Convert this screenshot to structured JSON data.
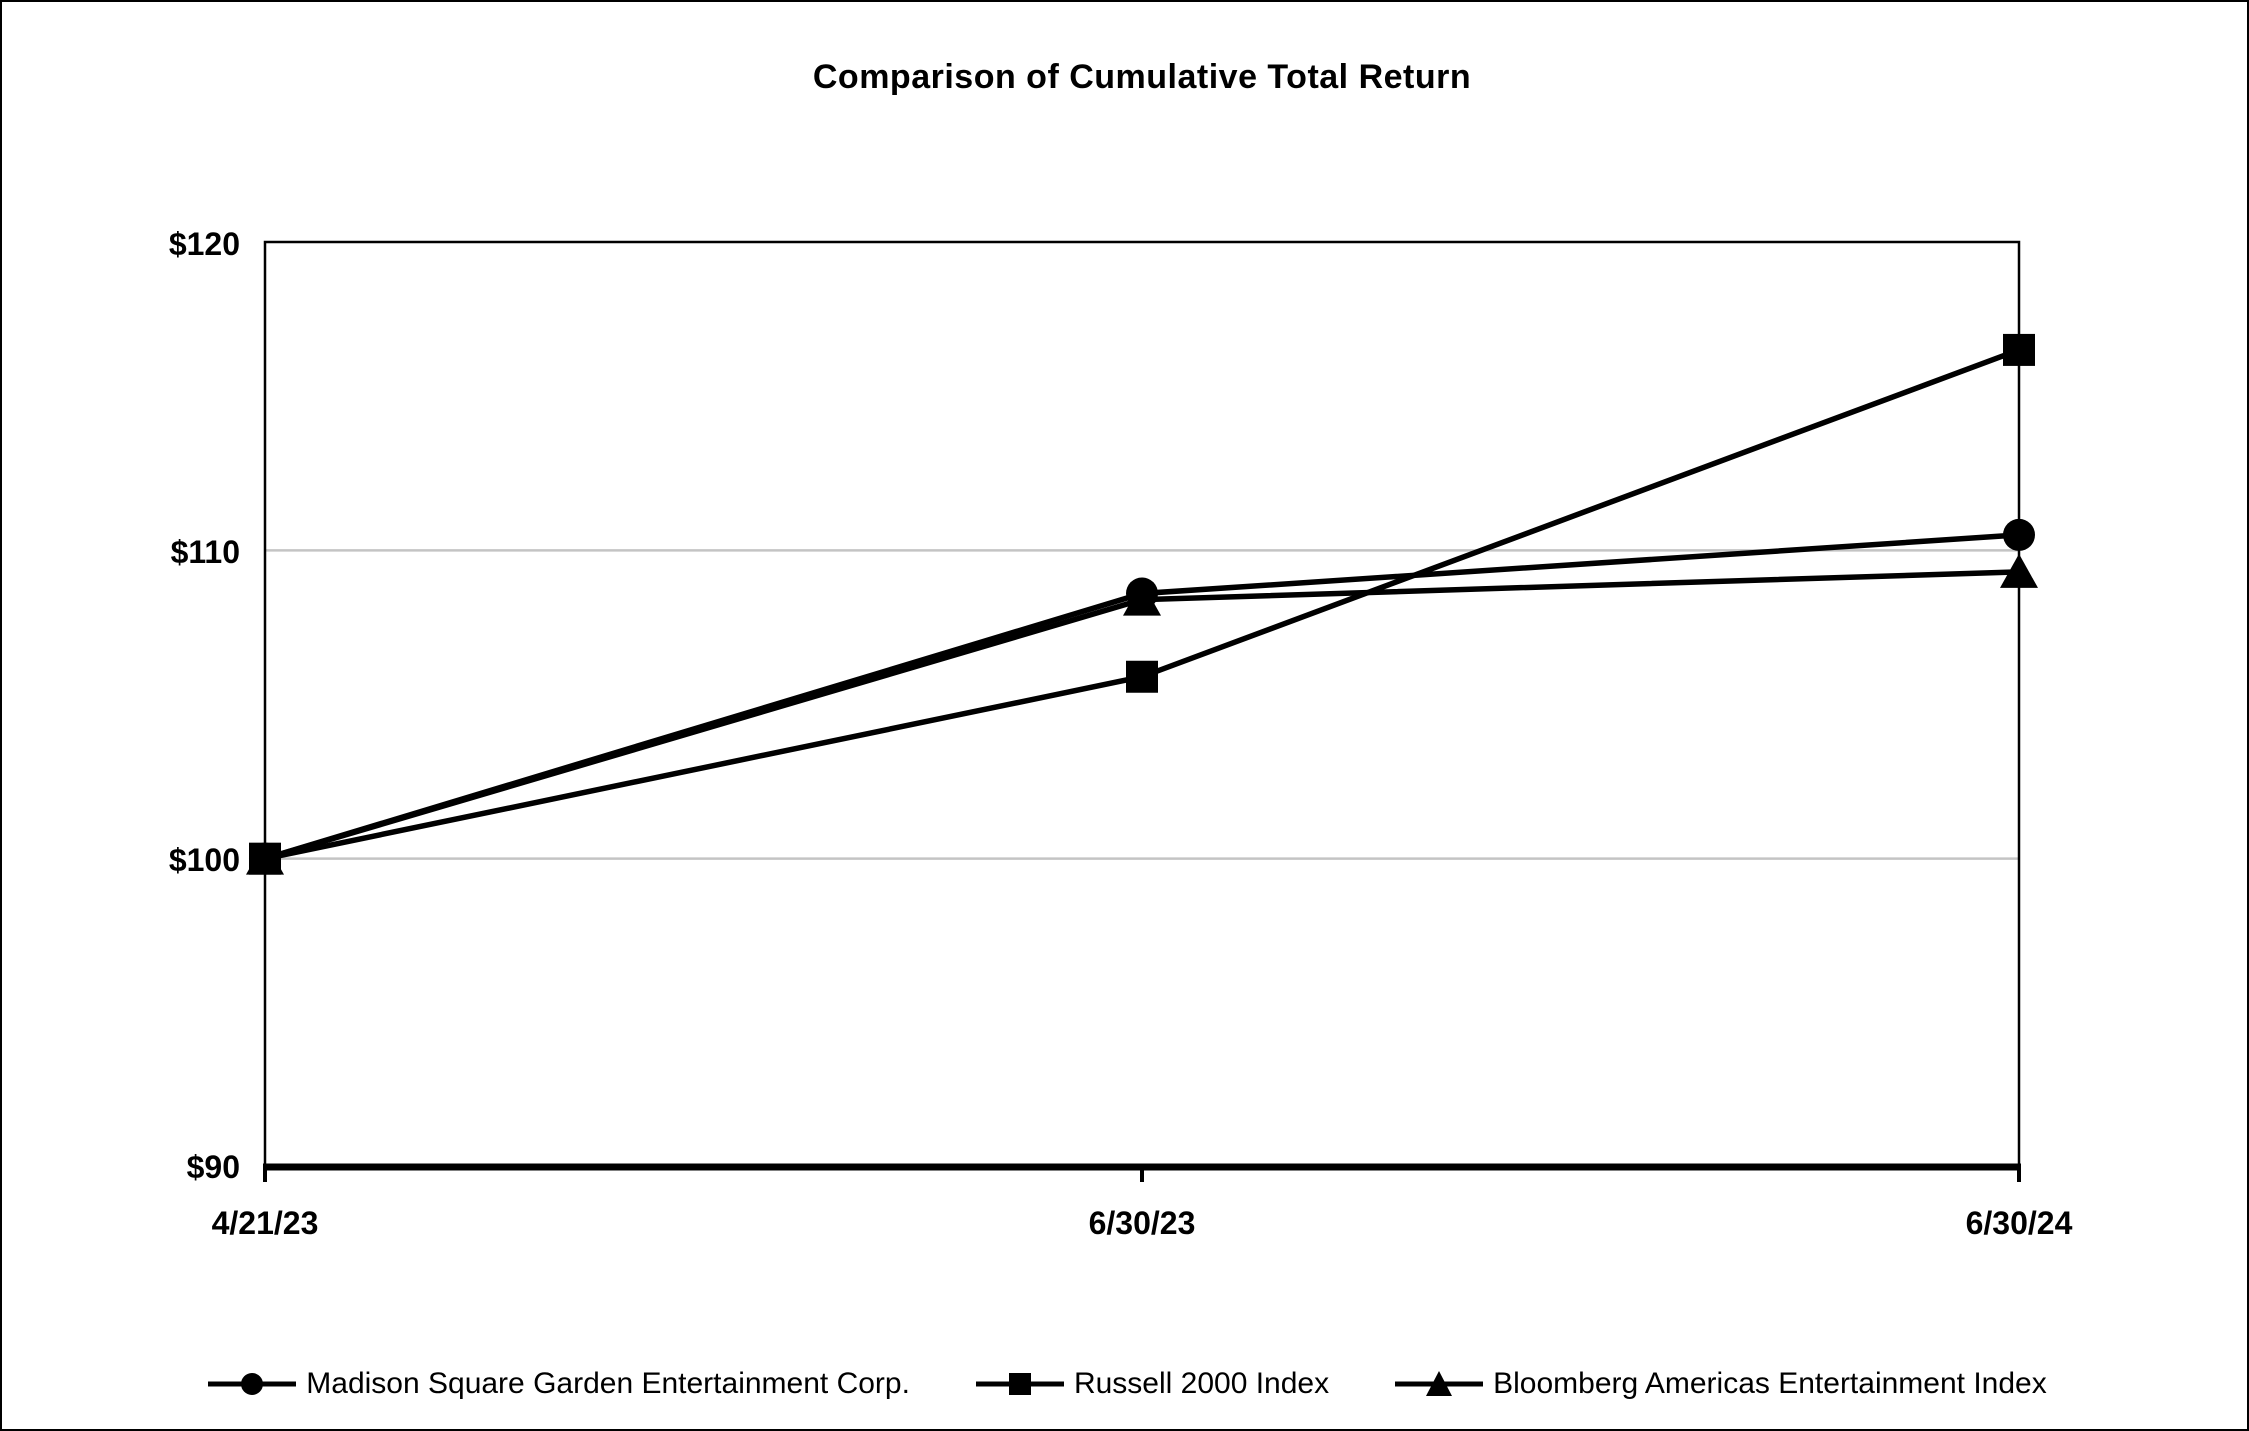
{
  "title": "Comparison of Cumulative Total Return",
  "chart_data": {
    "type": "line",
    "categories": [
      "4/21/23",
      "6/30/23",
      "6/30/24"
    ],
    "series": [
      {
        "name": "Madison Square Garden Entertainment Corp.",
        "marker": "circle",
        "values": [
          100,
          108.6,
          110.5
        ]
      },
      {
        "name": "Russell 2000 Index",
        "marker": "square",
        "values": [
          100,
          105.9,
          116.5
        ]
      },
      {
        "name": "Bloomberg Americas Entertainment Index",
        "marker": "triangle",
        "values": [
          100,
          108.4,
          109.3
        ]
      }
    ],
    "ylim": [
      90,
      120
    ],
    "y_ticks": [
      90,
      100,
      110,
      120
    ],
    "y_tick_labels": [
      "$90",
      "$100",
      "$110",
      "$120"
    ],
    "gridlines": [
      100,
      110
    ],
    "legend_position": "bottom",
    "line_color": "#000000",
    "gridline_color": "#c4c4c4",
    "background_color": "#ffffff"
  },
  "legend": {
    "items": [
      {
        "label": "Madison Square Garden Entertainment Corp.",
        "marker": "circle"
      },
      {
        "label": "Russell 2000 Index",
        "marker": "square"
      },
      {
        "label": "Bloomberg Americas Entertainment Index",
        "marker": "triangle"
      }
    ]
  }
}
